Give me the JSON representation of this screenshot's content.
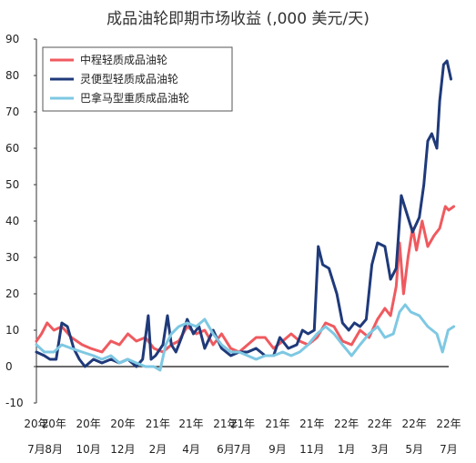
{
  "chart_data": {
    "type": "line",
    "title": "成品油轮即期市场收益 (,000 美元/天)",
    "ylim": [
      -10,
      90
    ],
    "yticks": [
      -10,
      0,
      10,
      20,
      30,
      40,
      50,
      60,
      70,
      80,
      90
    ],
    "xlim": [
      "2020-07",
      "2022-07"
    ],
    "x_ticks": [
      {
        "year": "20年",
        "month": "7月",
        "x": "2020-07"
      },
      {
        "year": "20年",
        "month": "8月",
        "x": "2020-08"
      },
      {
        "year": "20年",
        "month": "10月",
        "x": "2020-10"
      },
      {
        "year": "20年",
        "month": "12月",
        "x": "2020-12"
      },
      {
        "year": "21年",
        "month": "2月",
        "x": "2021-02"
      },
      {
        "year": "21年",
        "month": "4月",
        "x": "2021-04"
      },
      {
        "year": "21年",
        "month": "6月",
        "x": "2021-06"
      },
      {
        "year": "21年",
        "month": "7月",
        "x": "2021-07"
      },
      {
        "year": "21年",
        "month": "9月",
        "x": "2021-09"
      },
      {
        "year": "21年",
        "month": "11月",
        "x": "2021-11"
      },
      {
        "year": "22年",
        "month": "1月",
        "x": "2022-01"
      },
      {
        "year": "22年",
        "month": "3月",
        "x": "2022-03"
      },
      {
        "year": "22年",
        "month": "5月",
        "x": "2022-05"
      },
      {
        "year": "22年",
        "month": "7月",
        "x": "2022-07"
      }
    ],
    "legend_position": "top-left",
    "grid": false,
    "series": [
      {
        "name": "中程轻质成品油轮",
        "color": "#ef5a5f",
        "points": [
          [
            "2020-07-01",
            7
          ],
          [
            "2020-07-10",
            9
          ],
          [
            "2020-07-20",
            12
          ],
          [
            "2020-08-01",
            10
          ],
          [
            "2020-08-15",
            11
          ],
          [
            "2020-09-01",
            8
          ],
          [
            "2020-09-20",
            6
          ],
          [
            "2020-10-05",
            5
          ],
          [
            "2020-10-25",
            4
          ],
          [
            "2020-11-10",
            7
          ],
          [
            "2020-11-25",
            6
          ],
          [
            "2020-12-10",
            9
          ],
          [
            "2020-12-25",
            7
          ],
          [
            "2021-01-10",
            8
          ],
          [
            "2021-01-25",
            5
          ],
          [
            "2021-02-10",
            4
          ],
          [
            "2021-02-25",
            6
          ],
          [
            "2021-03-10",
            7
          ],
          [
            "2021-03-25",
            11
          ],
          [
            "2021-04-10",
            9
          ],
          [
            "2021-04-25",
            10
          ],
          [
            "2021-05-10",
            6
          ],
          [
            "2021-05-25",
            9
          ],
          [
            "2021-06-10",
            5
          ],
          [
            "2021-06-25",
            4
          ],
          [
            "2021-07-10",
            6
          ],
          [
            "2021-07-25",
            8
          ],
          [
            "2021-08-10",
            8
          ],
          [
            "2021-08-25",
            5
          ],
          [
            "2021-09-10",
            7
          ],
          [
            "2021-09-25",
            9
          ],
          [
            "2021-10-10",
            7
          ],
          [
            "2021-10-25",
            6
          ],
          [
            "2021-11-10",
            8
          ],
          [
            "2021-11-25",
            12
          ],
          [
            "2021-12-10",
            11
          ],
          [
            "2021-12-25",
            7
          ],
          [
            "2022-01-10",
            6
          ],
          [
            "2022-01-25",
            10
          ],
          [
            "2022-02-10",
            8
          ],
          [
            "2022-02-25",
            13
          ],
          [
            "2022-03-10",
            16
          ],
          [
            "2022-03-20",
            14
          ],
          [
            "2022-03-30",
            22
          ],
          [
            "2022-04-05",
            34
          ],
          [
            "2022-04-12",
            20
          ],
          [
            "2022-04-20",
            30
          ],
          [
            "2022-04-28",
            38
          ],
          [
            "2022-05-05",
            32
          ],
          [
            "2022-05-15",
            40
          ],
          [
            "2022-05-25",
            33
          ],
          [
            "2022-06-05",
            36
          ],
          [
            "2022-06-15",
            38
          ],
          [
            "2022-06-25",
            44
          ],
          [
            "2022-07-01",
            43
          ],
          [
            "2022-07-10",
            44
          ]
        ]
      },
      {
        "name": "灵便型轻质成品油轮",
        "color": "#1f3a7a",
        "points": [
          [
            "2020-07-01",
            4
          ],
          [
            "2020-07-15",
            3
          ],
          [
            "2020-07-25",
            2
          ],
          [
            "2020-08-05",
            2
          ],
          [
            "2020-08-15",
            12
          ],
          [
            "2020-08-25",
            11
          ],
          [
            "2020-09-05",
            5
          ],
          [
            "2020-09-15",
            2
          ],
          [
            "2020-09-25",
            0
          ],
          [
            "2020-10-10",
            2
          ],
          [
            "2020-10-25",
            1
          ],
          [
            "2020-11-10",
            2
          ],
          [
            "2020-11-25",
            1
          ],
          [
            "2020-12-10",
            2
          ],
          [
            "2020-12-25",
            0
          ],
          [
            "2021-01-05",
            2
          ],
          [
            "2021-01-15",
            14
          ],
          [
            "2021-01-20",
            2
          ],
          [
            "2021-01-28",
            3
          ],
          [
            "2021-02-10",
            6
          ],
          [
            "2021-02-18",
            14
          ],
          [
            "2021-02-25",
            6
          ],
          [
            "2021-03-05",
            4
          ],
          [
            "2021-03-15",
            8
          ],
          [
            "2021-03-25",
            13
          ],
          [
            "2021-04-05",
            9
          ],
          [
            "2021-04-15",
            11
          ],
          [
            "2021-04-25",
            5
          ],
          [
            "2021-05-10",
            10
          ],
          [
            "2021-05-25",
            5
          ],
          [
            "2021-06-10",
            3
          ],
          [
            "2021-06-25",
            4
          ],
          [
            "2021-07-10",
            4
          ],
          [
            "2021-07-25",
            5
          ],
          [
            "2021-08-10",
            3
          ],
          [
            "2021-08-25",
            3
          ],
          [
            "2021-09-05",
            8
          ],
          [
            "2021-09-20",
            5
          ],
          [
            "2021-10-05",
            6
          ],
          [
            "2021-10-15",
            10
          ],
          [
            "2021-10-25",
            9
          ],
          [
            "2021-11-05",
            10
          ],
          [
            "2021-11-12",
            33
          ],
          [
            "2021-11-20",
            28
          ],
          [
            "2021-12-01",
            27
          ],
          [
            "2021-12-15",
            20
          ],
          [
            "2021-12-25",
            12
          ],
          [
            "2022-01-05",
            10
          ],
          [
            "2022-01-15",
            12
          ],
          [
            "2022-01-25",
            11
          ],
          [
            "2022-02-05",
            13
          ],
          [
            "2022-02-15",
            28
          ],
          [
            "2022-02-25",
            34
          ],
          [
            "2022-03-10",
            33
          ],
          [
            "2022-03-20",
            24
          ],
          [
            "2022-03-30",
            27
          ],
          [
            "2022-04-08",
            47
          ],
          [
            "2022-04-18",
            42
          ],
          [
            "2022-04-28",
            37
          ],
          [
            "2022-05-10",
            41
          ],
          [
            "2022-05-18",
            50
          ],
          [
            "2022-05-25",
            62
          ],
          [
            "2022-06-01",
            64
          ],
          [
            "2022-06-10",
            60
          ],
          [
            "2022-06-15",
            73
          ],
          [
            "2022-06-22",
            83
          ],
          [
            "2022-06-28",
            84
          ],
          [
            "2022-07-05",
            79
          ]
        ]
      },
      {
        "name": "巴拿马型重质成品油轮",
        "color": "#7ec8e3",
        "points": [
          [
            "2020-07-01",
            6
          ],
          [
            "2020-07-15",
            4
          ],
          [
            "2020-08-01",
            4
          ],
          [
            "2020-08-15",
            6
          ],
          [
            "2020-09-01",
            5
          ],
          [
            "2020-09-20",
            4
          ],
          [
            "2020-10-10",
            3
          ],
          [
            "2020-10-25",
            2
          ],
          [
            "2020-11-10",
            3
          ],
          [
            "2020-11-25",
            1
          ],
          [
            "2020-12-10",
            2
          ],
          [
            "2020-12-25",
            1
          ],
          [
            "2021-01-10",
            0
          ],
          [
            "2021-01-25",
            0
          ],
          [
            "2021-02-05",
            -1
          ],
          [
            "2021-02-15",
            6
          ],
          [
            "2021-02-25",
            9
          ],
          [
            "2021-03-10",
            11
          ],
          [
            "2021-03-25",
            12
          ],
          [
            "2021-04-10",
            11
          ],
          [
            "2021-04-25",
            13
          ],
          [
            "2021-05-10",
            9
          ],
          [
            "2021-05-25",
            6
          ],
          [
            "2021-06-10",
            4
          ],
          [
            "2021-06-25",
            4
          ],
          [
            "2021-07-10",
            3
          ],
          [
            "2021-07-25",
            2
          ],
          [
            "2021-08-10",
            3
          ],
          [
            "2021-08-25",
            3
          ],
          [
            "2021-09-10",
            4
          ],
          [
            "2021-09-25",
            3
          ],
          [
            "2021-10-10",
            4
          ],
          [
            "2021-10-25",
            6
          ],
          [
            "2021-11-10",
            9
          ],
          [
            "2021-11-25",
            11
          ],
          [
            "2021-12-10",
            9
          ],
          [
            "2021-12-25",
            6
          ],
          [
            "2022-01-10",
            3
          ],
          [
            "2022-01-25",
            6
          ],
          [
            "2022-02-10",
            9
          ],
          [
            "2022-02-25",
            11
          ],
          [
            "2022-03-10",
            8
          ],
          [
            "2022-03-25",
            9
          ],
          [
            "2022-04-05",
            15
          ],
          [
            "2022-04-15",
            17
          ],
          [
            "2022-04-25",
            15
          ],
          [
            "2022-05-10",
            14
          ],
          [
            "2022-05-25",
            11
          ],
          [
            "2022-06-10",
            9
          ],
          [
            "2022-06-20",
            4
          ],
          [
            "2022-06-30",
            10
          ],
          [
            "2022-07-10",
            11
          ]
        ]
      }
    ]
  }
}
